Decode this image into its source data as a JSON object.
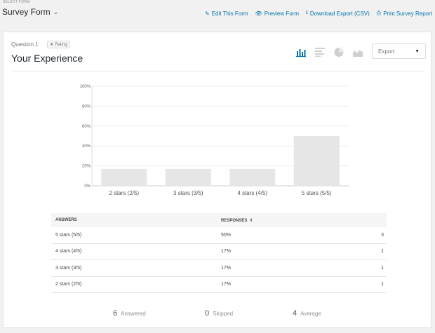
{
  "top": {
    "select_label": "SELECT FORM",
    "form_name": "Survey Form",
    "links": [
      {
        "label": "Edit This Form",
        "icon": "pencil-icon"
      },
      {
        "label": "Preview Form",
        "icon": "eye-icon"
      },
      {
        "label": "Download Export (CSV)",
        "icon": "download-icon"
      },
      {
        "label": "Print Survey Report",
        "icon": "printer-icon"
      }
    ]
  },
  "question": {
    "number": "Question 1",
    "type_badge": "Rating",
    "title": "Your Experience",
    "export_label": "Export"
  },
  "colors": {
    "accent": "#0073aa",
    "bar": "#e6e6e6",
    "active_icon": "#0073aa",
    "inactive_icon": "#cfcfcf"
  },
  "chart_data": {
    "type": "bar",
    "categories": [
      "2 stars (2/5)",
      "3 stars (3/5)",
      "4 stars (4/5)",
      "5 stars (5/5)"
    ],
    "values": [
      17,
      17,
      17,
      50
    ],
    "ylim": [
      0,
      100
    ],
    "yticks": [
      "0%",
      "20%",
      "40%",
      "60%",
      "80%",
      "100%"
    ],
    "grid": true
  },
  "table": {
    "headers": {
      "answers": "ANSWERS",
      "responses": "RESPONSES"
    },
    "rows": [
      {
        "answer": "5 stars (5/5)",
        "percent": "50%",
        "count": "3"
      },
      {
        "answer": "4 stars (4/5)",
        "percent": "17%",
        "count": "1"
      },
      {
        "answer": "3 stars (3/5)",
        "percent": "17%",
        "count": "1"
      },
      {
        "answer": "2 stars (2/5)",
        "percent": "17%",
        "count": "1"
      }
    ]
  },
  "stats": [
    {
      "value": "6",
      "label": "Answered"
    },
    {
      "value": "0",
      "label": "Skipped"
    },
    {
      "value": "4",
      "label": "Average"
    }
  ]
}
